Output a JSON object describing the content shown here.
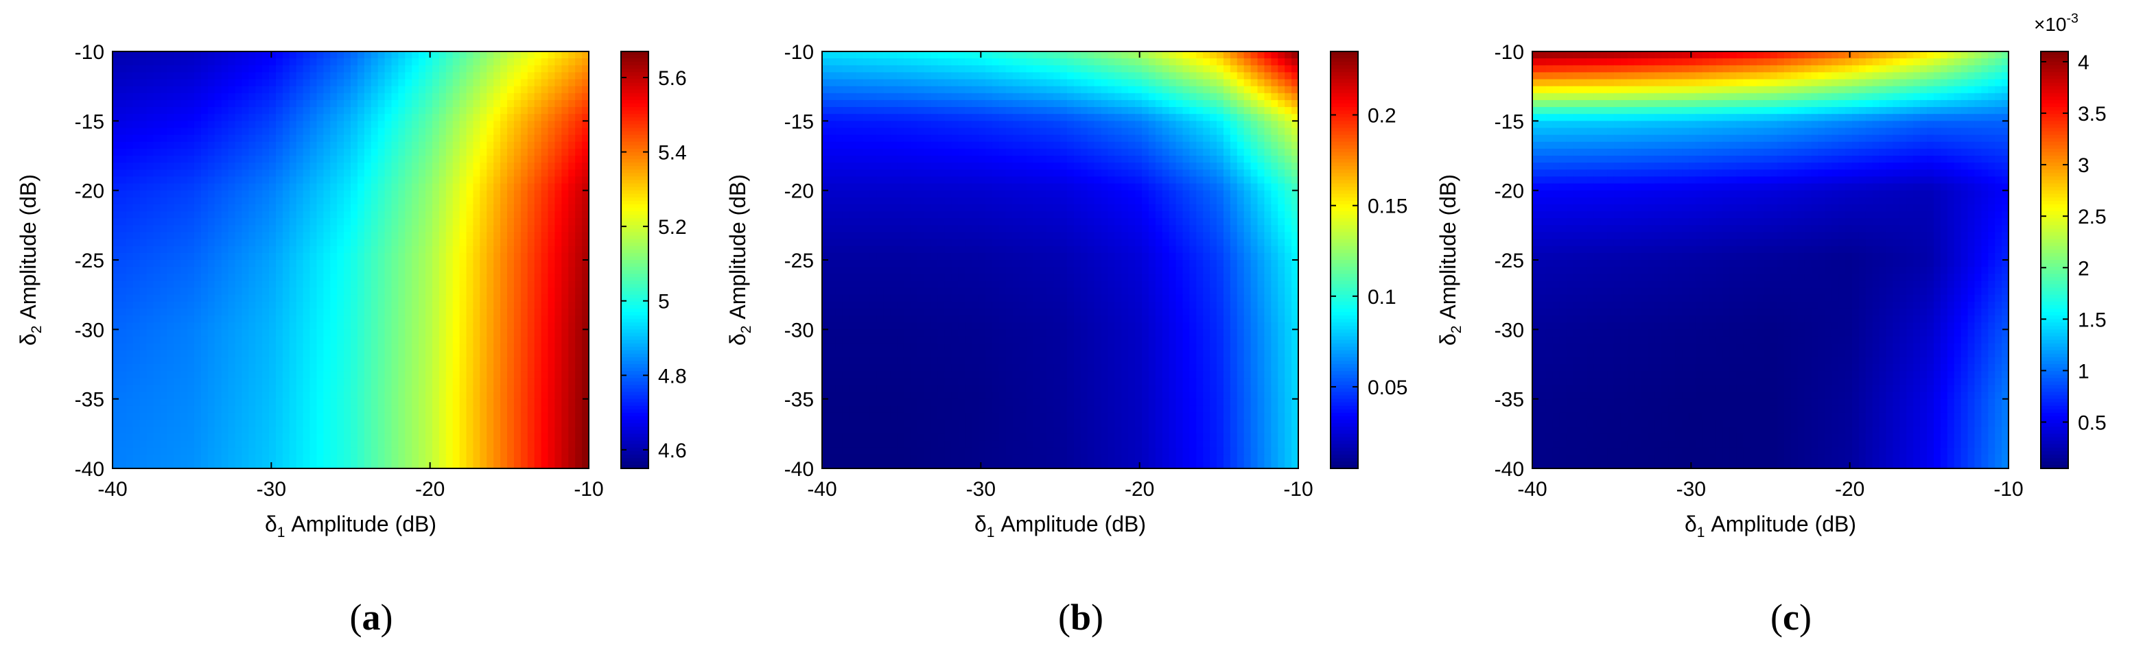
{
  "figure": {
    "panels": [
      {
        "caption_prefix": "(",
        "caption_letter": "a",
        "caption_suffix": ")"
      },
      {
        "caption_prefix": "(",
        "caption_letter": "b",
        "caption_suffix": ")"
      },
      {
        "caption_prefix": "(",
        "caption_letter": "c",
        "caption_suffix": ")"
      }
    ]
  },
  "chart_data": [
    {
      "type": "heatmap",
      "colormap": "jet",
      "xlabel": "δ1 Amplitude (dB)",
      "ylabel": "δ2 Amplitude (dB)",
      "xlim": [
        -40,
        -10
      ],
      "ylim": [
        -40,
        -10
      ],
      "xticks": [
        "-40",
        "-30",
        "-20",
        "-10"
      ],
      "yticks": [
        "-10",
        "-15",
        "-20",
        "-25",
        "-30",
        "-35",
        "-40"
      ],
      "colorbar": {
        "range": [
          4.55,
          5.67
        ],
        "ticks": [
          "4.6",
          "4.8",
          "5",
          "5.2",
          "5.4",
          "5.6"
        ],
        "tick_values": [
          4.6,
          4.8,
          5.0,
          5.2,
          5.4,
          5.6
        ],
        "exponent_label": ""
      },
      "surface": {
        "x": [
          -40,
          -35,
          -30,
          -25,
          -20,
          -15,
          -10
        ],
        "y": [
          -10,
          -15,
          -20,
          -25,
          -30,
          -35,
          -40
        ],
        "z": [
          [
            4.6,
            4.62,
            4.68,
            4.8,
            4.98,
            5.18,
            5.34
          ],
          [
            4.66,
            4.69,
            4.76,
            4.89,
            5.07,
            5.3,
            5.5
          ],
          [
            4.73,
            4.76,
            4.83,
            4.95,
            5.13,
            5.37,
            5.6
          ],
          [
            4.77,
            4.8,
            4.87,
            4.99,
            5.16,
            5.4,
            5.63
          ],
          [
            4.8,
            4.83,
            4.89,
            5.0,
            5.17,
            5.41,
            5.65
          ],
          [
            4.82,
            4.84,
            4.9,
            5.01,
            5.18,
            5.42,
            5.66
          ],
          [
            4.83,
            4.85,
            4.91,
            5.01,
            5.18,
            5.42,
            5.67
          ]
        ]
      }
    },
    {
      "type": "heatmap",
      "colormap": "jet",
      "xlabel": "δ1 Amplitude (dB)",
      "ylabel": "δ2 Amplitude (dB)",
      "xlim": [
        -40,
        -10
      ],
      "ylim": [
        -40,
        -10
      ],
      "xticks": [
        "-40",
        "-30",
        "-20",
        "-10"
      ],
      "yticks": [
        "-10",
        "-15",
        "-20",
        "-25",
        "-30",
        "-35",
        "-40"
      ],
      "colorbar": {
        "range": [
          0.005,
          0.235
        ],
        "ticks": [
          "0.05",
          "0.1",
          "0.15",
          "0.2"
        ],
        "tick_values": [
          0.05,
          0.1,
          0.15,
          0.2
        ],
        "exponent_label": ""
      },
      "surface": {
        "x": [
          -40,
          -35,
          -30,
          -25,
          -20,
          -15,
          -10
        ],
        "y": [
          -10,
          -15,
          -20,
          -25,
          -30,
          -35,
          -40
        ],
        "z": [
          [
            0.085,
            0.09,
            0.097,
            0.11,
            0.13,
            0.165,
            0.235
          ],
          [
            0.038,
            0.04,
            0.044,
            0.05,
            0.062,
            0.088,
            0.145
          ],
          [
            0.022,
            0.022,
            0.023,
            0.026,
            0.035,
            0.058,
            0.105
          ],
          [
            0.012,
            0.012,
            0.013,
            0.016,
            0.025,
            0.047,
            0.09
          ],
          [
            0.008,
            0.008,
            0.009,
            0.012,
            0.021,
            0.043,
            0.085
          ],
          [
            0.006,
            0.006,
            0.007,
            0.011,
            0.02,
            0.041,
            0.083
          ],
          [
            0.005,
            0.005,
            0.007,
            0.01,
            0.019,
            0.04,
            0.082
          ]
        ]
      }
    },
    {
      "type": "heatmap",
      "colormap": "jet",
      "xlabel": "δ1 Amplitude (dB)",
      "ylabel": "δ2 Amplitude (dB)",
      "xlim": [
        -40,
        -10
      ],
      "ylim": [
        -40,
        -10
      ],
      "xticks": [
        "-40",
        "-30",
        "-20",
        "-10"
      ],
      "yticks": [
        "-10",
        "-15",
        "-20",
        "-25",
        "-30",
        "-35",
        "-40"
      ],
      "colorbar": {
        "range": [
          0.05,
          4.1
        ],
        "ticks": [
          "0.5",
          "1",
          "1.5",
          "2",
          "2.5",
          "3",
          "3.5",
          "4"
        ],
        "tick_values": [
          0.5,
          1,
          1.5,
          2,
          2.5,
          3,
          3.5,
          4
        ],
        "exponent_label": "×10-3"
      },
      "surface": {
        "x": [
          -40,
          -35,
          -30,
          -25,
          -20,
          -15,
          -10
        ],
        "y": [
          -10,
          -15,
          -20,
          -25,
          -30,
          -35,
          -40
        ],
        "z": [
          [
            4.1,
            4.0,
            3.85,
            3.6,
            3.2,
            2.7,
            2.0
          ],
          [
            1.4,
            1.38,
            1.33,
            1.25,
            1.1,
            0.95,
            0.95
          ],
          [
            0.55,
            0.52,
            0.48,
            0.42,
            0.34,
            0.28,
            0.55
          ],
          [
            0.25,
            0.22,
            0.19,
            0.15,
            0.12,
            0.22,
            0.7
          ],
          [
            0.15,
            0.12,
            0.1,
            0.08,
            0.12,
            0.35,
            0.9
          ],
          [
            0.1,
            0.08,
            0.06,
            0.06,
            0.15,
            0.45,
            1.05
          ],
          [
            0.08,
            0.06,
            0.05,
            0.06,
            0.17,
            0.5,
            1.1
          ]
        ]
      }
    }
  ]
}
